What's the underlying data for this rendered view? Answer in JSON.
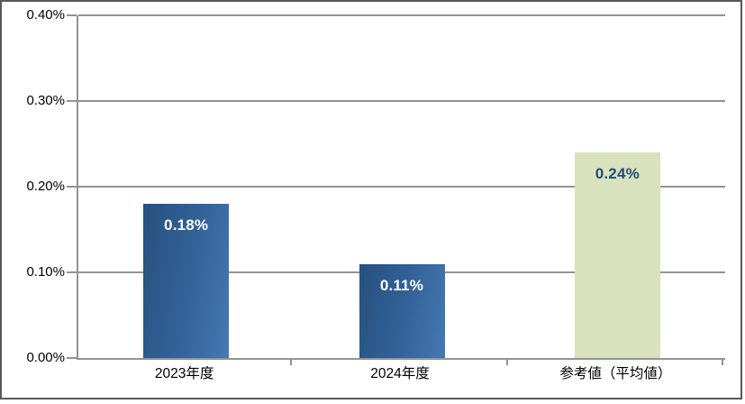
{
  "chart_data": {
    "type": "bar",
    "title": "",
    "xlabel": "",
    "ylabel": "",
    "categories": [
      "2023年度",
      "2024年度",
      "参考値（平均値）"
    ],
    "values": [
      0.18,
      0.11,
      0.24
    ],
    "value_labels": [
      "0.18%",
      "0.11%",
      "0.24%"
    ],
    "value_unit": "%",
    "ylim": [
      0,
      0.4
    ],
    "ytick_step": 0.1,
    "ytick_labels": [
      "0.00%",
      "0.10%",
      "0.20%",
      "0.30%",
      "0.40%"
    ],
    "grid": true,
    "legend": false,
    "bar_styles": [
      "blue",
      "blue",
      "green"
    ],
    "colors": {
      "bar_blue_dark": "#27517e",
      "bar_blue_mid": "#33639a",
      "bar_blue_light": "#4679b2",
      "bar_green": "#d9e2bd",
      "label_on_blue": "#ffffff",
      "label_on_green": "#1f4e79",
      "gridline": "#939393",
      "axis": "#939393",
      "text": "#000000",
      "chart_border": "#595959"
    }
  }
}
